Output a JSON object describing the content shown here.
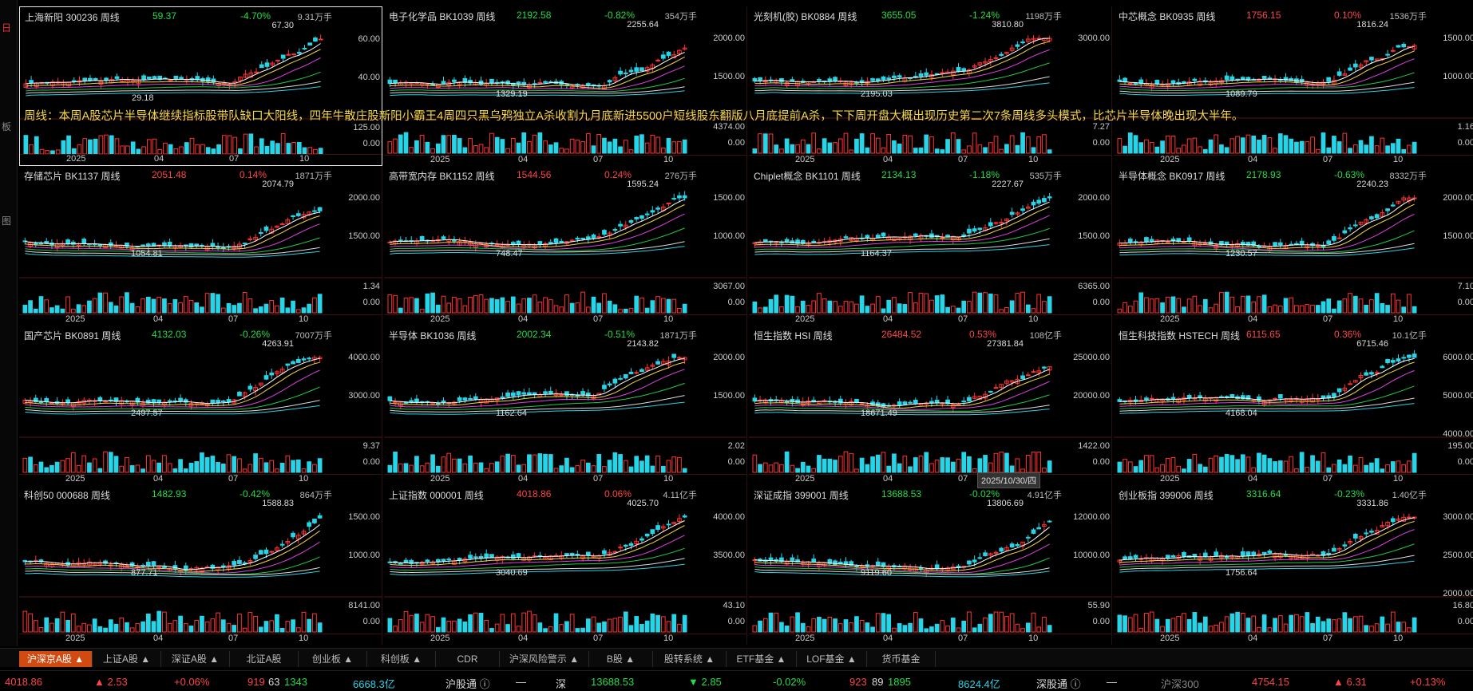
{
  "left_strip": {
    "marks": [
      "日",
      "板",
      "图"
    ]
  },
  "overlay_text": "周线：本周A股芯片半导体继续指标股带队缺口大阳线，四年牛散庄股新阳小霸王4周四只黑乌鸦独立A杀收割九月底新进5500户短线股东翻版八月底提前A杀，下下周开盘大概出现历史第二次7条周线多头模式，比芯片半导体晚出现大半年。",
  "tooltip": "2025/10/30/四",
  "x_labels": [
    "2025",
    "04",
    "07",
    "10"
  ],
  "panels": [
    {
      "name": "上海新阳  300236  周线",
      "price": "59.37",
      "change": "-4.70%",
      "dir": "dn",
      "volume": "9.31万手",
      "high": "67.30",
      "low": "29.18",
      "y": [
        "60.00",
        "40.00"
      ],
      "vy": [
        "125.00",
        "0.00"
      ],
      "active": true
    },
    {
      "name": "电子化学品  BK1039  周线",
      "price": "2192.58",
      "change": "-0.82%",
      "dir": "dn",
      "volume": "354万手",
      "high": "2255.64",
      "low": "1329.19",
      "y": [
        "2000.00",
        "1500.00"
      ],
      "vy": [
        "4374.00",
        "0.00"
      ]
    },
    {
      "name": "光刻机(胶)  BK0884  周线",
      "price": "3655.05",
      "change": "-1.24%",
      "dir": "dn",
      "volume": "1198万手",
      "high": "3810.80",
      "low": "2195.03",
      "y": [
        "3000.00"
      ],
      "vy": [
        "7.27",
        "0.00"
      ]
    },
    {
      "name": "中芯概念  BK0935  周线",
      "price": "1756.15",
      "change": "0.10%",
      "dir": "up",
      "volume": "1536万手",
      "high": "1816.24",
      "low": "1089.79",
      "y": [
        "1500.00",
        "1000.00"
      ],
      "vy": [
        "1.16",
        "0.00"
      ]
    },
    {
      "name": "存储芯片  BK1137  周线",
      "price": "2051.48",
      "change": "0.14%",
      "dir": "up",
      "volume": "1871万手",
      "high": "2074.79",
      "low": "1054.81",
      "y": [
        "2000.00",
        "1500.00"
      ],
      "vy": [
        "1.34",
        "0.00"
      ]
    },
    {
      "name": "高带宽内存  BK1152  周线",
      "price": "1544.56",
      "change": "0.24%",
      "dir": "up",
      "volume": "276万手",
      "high": "1595.24",
      "low": "748.47",
      "y": [
        "1500.00",
        "1000.00"
      ],
      "vy": [
        "3067.00",
        "0.00"
      ]
    },
    {
      "name": "Chiplet概念  BK1101  周线",
      "price": "2134.13",
      "change": "-1.18%",
      "dir": "dn",
      "volume": "535万手",
      "high": "2227.67",
      "low": "1164.37",
      "y": [
        "2000.00",
        "1500.00"
      ],
      "vy": [
        "6365.00",
        "0.00"
      ]
    },
    {
      "name": "半导体概念  BK0917  周线",
      "price": "2178.93",
      "change": "-0.63%",
      "dir": "dn",
      "volume": "8332万手",
      "high": "2240.23",
      "low": "1230.57",
      "y": [
        "2000.00",
        "1500.00"
      ],
      "vy": [
        "7.10",
        "0.00"
      ]
    },
    {
      "name": "国产芯片  BK0891  周线",
      "price": "4132.03",
      "change": "-0.26%",
      "dir": "dn",
      "volume": "7007万手",
      "high": "4263.91",
      "low": "2497.57",
      "y": [
        "4000.00",
        "3000.00"
      ],
      "vy": [
        "9.37",
        "0.00"
      ]
    },
    {
      "name": "半导体  BK1036  周线",
      "price": "2002.34",
      "change": "-0.51%",
      "dir": "dn",
      "volume": "1871万手",
      "high": "2143.82",
      "low": "1162.64",
      "y": [
        "2000.00",
        "1500.00"
      ],
      "vy": [
        "2.02",
        "0.00"
      ]
    },
    {
      "name": "恒生指数  HSI  周线",
      "price": "26484.52",
      "change": "0.53%",
      "dir": "up",
      "volume": "108亿手",
      "high": "27381.84",
      "low": "18671.49",
      "y": [
        "25000.00",
        "20000.00"
      ],
      "vy": [
        "1422.00",
        "0.00"
      ]
    },
    {
      "name": "恒生科技指数  HSTECH  周线",
      "price": "6115.65",
      "change": "0.36%",
      "dir": "up",
      "volume": "10.1亿手",
      "high": "6715.46",
      "low": "4168.04",
      "y": [
        "6000.00",
        "5000.00",
        "4000.00"
      ],
      "vy": [
        "195.00",
        "0.00"
      ]
    },
    {
      "name": "科创50  000688  周线",
      "price": "1482.93",
      "change": "-0.42%",
      "dir": "dn",
      "volume": "864万手",
      "high": "1588.83",
      "low": "877.71",
      "y": [
        "1500.00",
        "1000.00"
      ],
      "vy": [
        "8141.00",
        "0.00"
      ]
    },
    {
      "name": "上证指数  000001  周线",
      "price": "4018.86",
      "change": "0.06%",
      "dir": "up",
      "volume": "4.11亿手",
      "high": "4025.70",
      "low": "3040.69",
      "y": [
        "4000.00",
        "3500.00"
      ],
      "vy": [
        "43.10",
        "0.00"
      ]
    },
    {
      "name": "深证成指  399001  周线",
      "price": "13688.53",
      "change": "-0.02%",
      "dir": "dn",
      "volume": "4.91亿手",
      "high": "13806.69",
      "low": "9119.60",
      "y": [
        "12000.00",
        "10000.00"
      ],
      "vy": [
        "55.90",
        "0.00"
      ]
    },
    {
      "name": "创业板指  399006  周线",
      "price": "3316.64",
      "change": "-0.23%",
      "dir": "dn",
      "volume": "1.40亿手",
      "high": "3331.86",
      "low": "1756.64",
      "y": [
        "3000.00",
        "2500.00",
        "2000.00"
      ],
      "vy": [
        "16.80",
        "0.00"
      ]
    }
  ],
  "tabs": [
    {
      "label": "沪深京A股 ▲",
      "sel": true
    },
    {
      "label": "上证A股 ▲"
    },
    {
      "label": "深证A股 ▲"
    },
    {
      "label": "北证A股"
    },
    {
      "label": "创业板 ▲"
    },
    {
      "label": "科创板 ▲"
    },
    {
      "label": "CDR"
    },
    {
      "label": "沪深风险警示 ▲"
    },
    {
      "label": "B股 ▲"
    },
    {
      "label": "股转系统 ▲"
    },
    {
      "label": "ETF基金 ▲"
    },
    {
      "label": "LOF基金 ▲"
    },
    {
      "label": "货币基金"
    }
  ],
  "status": {
    "sh_index": "4018.86",
    "sh_chg": "▲ 2.53",
    "sh_pct": "+0.06%",
    "sh_up": "919",
    "sh_flat": "63",
    "sh_down": "1343",
    "sh_amt": "6668.3亿",
    "hgt_label": "沪股通 ⓘ",
    "hgt_val": "—",
    "sz_label": "深",
    "sz_index": "13688.53",
    "sz_chg": "▼ 2.85",
    "sz_pct": "-0.02%",
    "sz_up": "923",
    "sz_flat": "89",
    "sz_down": "1895",
    "sz_amt": "8624.4亿",
    "sgt_label": "深股通 ⓘ",
    "sgt_val": "—",
    "hs300_label": "沪深300",
    "hs300_index": "4754.15",
    "hs300_chg": "▲ 6.31",
    "hs300_pct": "+0.13%"
  }
}
